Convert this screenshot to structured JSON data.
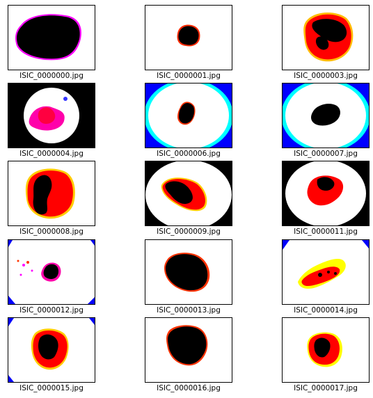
{
  "grid": {
    "images": [
      {
        "caption": "ISIC_0000000.jpg"
      },
      {
        "caption": "ISIC_0000001.jpg"
      },
      {
        "caption": "ISIC_0000003.jpg"
      },
      {
        "caption": "ISIC_0000004.jpg"
      },
      {
        "caption": "ISIC_0000006.jpg"
      },
      {
        "caption": "ISIC_0000007.jpg"
      },
      {
        "caption": "ISIC_0000008.jpg"
      },
      {
        "caption": "ISIC_0000009.jpg"
      },
      {
        "caption": "ISIC_0000011.jpg"
      },
      {
        "caption": "ISIC_0000012.jpg"
      },
      {
        "caption": "ISIC_0000013.jpg"
      },
      {
        "caption": "ISIC_0000014.jpg"
      },
      {
        "caption": "ISIC_0000015.jpg"
      },
      {
        "caption": "ISIC_0000016.jpg"
      },
      {
        "caption": "ISIC_0000017.jpg"
      }
    ]
  },
  "colors": {
    "lesion_dark": "#000000",
    "lesion_red": "#ff0000",
    "lesion_yellow": "#ffff00",
    "lesion_magenta": "#ff00ff",
    "vignette_cyan": "#00ffff",
    "vignette_blue": "#0000ff",
    "frame_border": "#000000"
  }
}
